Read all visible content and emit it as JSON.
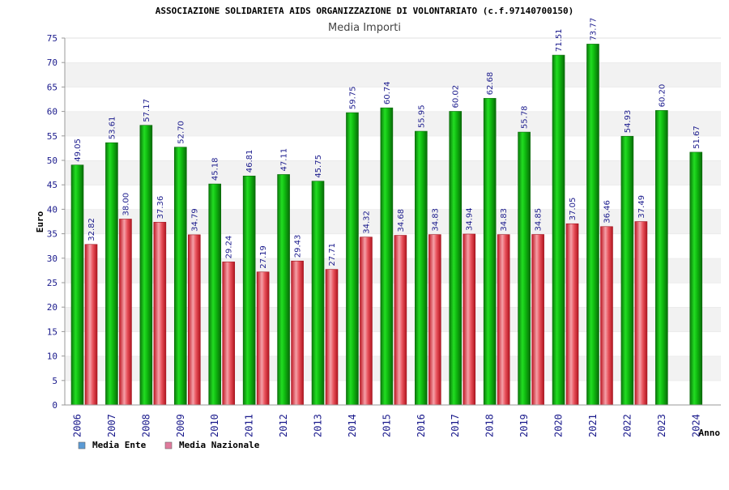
{
  "chart_data": {
    "type": "bar",
    "title": "ASSOCIAZIONE SOLIDARIETA AIDS ORGANIZZAZIONE DI VOLONTARIATO (c.f.97140700150)",
    "subtitle": "Media Importi",
    "xlabel": "Anno",
    "ylabel": "Euro",
    "ylim": [
      0,
      75
    ],
    "yticks": [
      0,
      5,
      10,
      15,
      20,
      25,
      30,
      35,
      40,
      45,
      50,
      55,
      60,
      65,
      70,
      75
    ],
    "grid": "horizontal bands",
    "legend_position": "bottom-left",
    "categories": [
      "2006",
      "2007",
      "2008",
      "2009",
      "2010",
      "2011",
      "2012",
      "2013",
      "2014",
      "2015",
      "2016",
      "2017",
      "2018",
      "2019",
      "2020",
      "2021",
      "2022",
      "2023",
      "2024"
    ],
    "series": [
      {
        "name": "Media Ente",
        "color": "#0fb80f",
        "legend_color": "#5b9bd5",
        "values": [
          49.05,
          53.61,
          57.17,
          52.7,
          45.18,
          46.81,
          47.11,
          45.75,
          59.75,
          60.74,
          55.95,
          60.02,
          62.68,
          55.78,
          71.51,
          73.77,
          54.93,
          60.2,
          51.67
        ],
        "labels": [
          "49.05",
          "53.61",
          "57.17",
          "52.70",
          "45.18",
          "46.81",
          "47.11",
          "45.75",
          "59.75",
          "60.74",
          "55.95",
          "60.02",
          "62.68",
          "55.78",
          "71.51",
          "73.77",
          "54.93",
          "60.20",
          "51.67"
        ]
      },
      {
        "name": "Media Nazionale",
        "color": "#e0323c",
        "legend_color": "#e07a9c",
        "values": [
          32.82,
          38.0,
          37.36,
          34.79,
          29.24,
          27.19,
          29.43,
          27.71,
          34.32,
          34.68,
          34.83,
          34.94,
          34.83,
          34.85,
          37.05,
          36.46,
          37.49,
          null,
          null
        ],
        "labels": [
          "32.82",
          "38.00",
          "37.36",
          "34.79",
          "29.24",
          "27.19",
          "29.43",
          "27.71",
          "34.32",
          "34.68",
          "34.83",
          "34.94",
          "34.83",
          "34.85",
          "37.05",
          "36.46",
          "37.49",
          "",
          ""
        ]
      }
    ]
  }
}
